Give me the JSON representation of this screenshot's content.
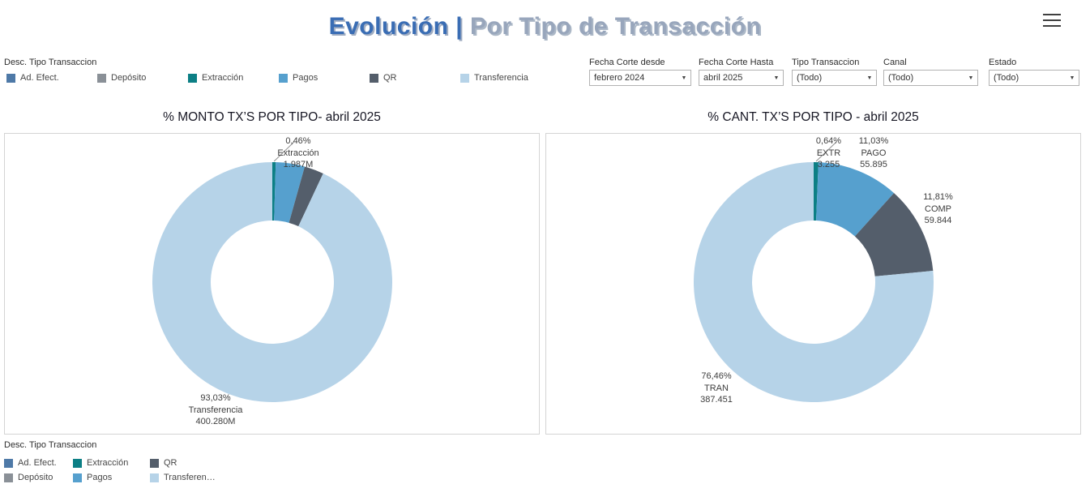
{
  "header": {
    "title_part1": "Evolución |",
    "title_part2": " Por Tipo de Transacción"
  },
  "legend_top": {
    "label": "Desc. Tipo Transaccion",
    "items": [
      {
        "label": "Ad. Efect.",
        "color": "#4E79A7"
      },
      {
        "label": "Depósito",
        "color": "#8A9097"
      },
      {
        "label": "Extracción",
        "color": "#0C7F85"
      },
      {
        "label": "Pagos",
        "color": "#56A0CE"
      },
      {
        "label": "QR",
        "color": "#545E6B"
      },
      {
        "label": "Transferencia",
        "color": "#B6D3E8"
      }
    ]
  },
  "filters": [
    {
      "label": "Fecha Corte desde",
      "value": "febrero 2024"
    },
    {
      "label": "Fecha Corte Hasta",
      "value": "abril 2025"
    },
    {
      "label": "Tipo Transaccion",
      "value": "(Todo)"
    },
    {
      "label": "Canal",
      "value": "(Todo)"
    },
    {
      "label": "Estado",
      "value": "(Todo)"
    }
  ],
  "chart_data": [
    {
      "type": "pie",
      "donut": true,
      "title": "% MONTO TX’S  POR TIPO- abril 2025",
      "slices": [
        {
          "label": "Extracción",
          "pct": 0.46,
          "amount": "1.987M",
          "color": "#0C7F85",
          "annotation": [
            "0,46%",
            "Extracción",
            "1.987M"
          ]
        },
        {
          "label": "Pagos",
          "pct": 3.9,
          "color": "#56A0CE"
        },
        {
          "label": "QR",
          "pct": 2.61,
          "color": "#545E6B"
        },
        {
          "label": "Transferencia",
          "pct": 93.03,
          "amount": "400.280M",
          "color": "#B6D3E8",
          "annotation": [
            "93,03%",
            "Transferencia",
            "400.280M"
          ]
        }
      ]
    },
    {
      "type": "pie",
      "donut": true,
      "title": "% CANT. TX’S  POR TIPO -  abril 2025",
      "slices": [
        {
          "label": "EXTR",
          "pct": 0.64,
          "amount": "3.255",
          "color": "#0C7F85",
          "annotation": [
            "0,64%",
            "EXTR",
            "3.255"
          ]
        },
        {
          "label": "PAGO",
          "pct": 11.03,
          "amount": "55.895",
          "color": "#56A0CE",
          "annotation": [
            "11,03%",
            "PAGO",
            "55.895"
          ]
        },
        {
          "label": "COMP",
          "pct": 11.81,
          "amount": "59.844",
          "color": "#545E6B",
          "annotation": [
            "11,81%",
            "COMP",
            "59.844"
          ]
        },
        {
          "label": "TRAN",
          "pct": 76.46,
          "amount": "387.451",
          "color": "#B6D3E8",
          "annotation": [
            "76,46%",
            "TRAN",
            "387.451"
          ]
        }
      ]
    }
  ],
  "legend_bottom": {
    "label": "Desc. Tipo Transaccion",
    "items": [
      {
        "label": "Ad. Efect.",
        "color": "#4E79A7"
      },
      {
        "label": "Depósito",
        "color": "#8A9097"
      },
      {
        "label": "Extracción",
        "color": "#0C7F85"
      },
      {
        "label": "Pagos",
        "color": "#56A0CE"
      },
      {
        "label": "QR",
        "color": "#545E6B"
      },
      {
        "label": "Transferen…",
        "color": "#B6D3E8"
      }
    ]
  }
}
